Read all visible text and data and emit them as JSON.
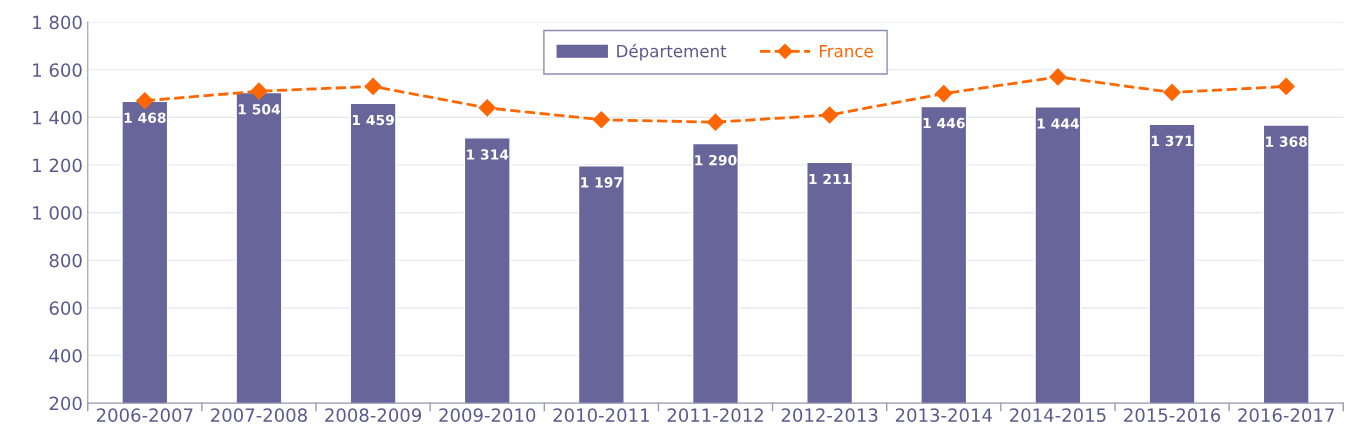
{
  "chart_data": {
    "type": "bar",
    "categories": [
      "2006-2007",
      "2007-2008",
      "2008-2009",
      "2009-2010",
      "2010-2011",
      "2011-2012",
      "2012-2013",
      "2013-2014",
      "2014-2015",
      "2015-2016",
      "2016-2017"
    ],
    "series": [
      {
        "name": "Département",
        "color": "#67659a",
        "values": [
          1468,
          1504,
          1459,
          1314,
          1197,
          1290,
          1211,
          1446,
          1444,
          1371,
          1368
        ],
        "value_labels": [
          "1 468",
          "1 504",
          "1 459",
          "1 314",
          "1 197",
          "1 290",
          "1 211",
          "1 446",
          "1 444",
          "1 371",
          "1 368"
        ]
      },
      {
        "name": "France",
        "type": "line",
        "color": "#ff6600",
        "line_style": "dashed",
        "marker": "diamond",
        "values": [
          1470,
          1510,
          1530,
          1440,
          1390,
          1380,
          1410,
          1500,
          1570,
          1505,
          1530
        ]
      }
    ],
    "ylim": [
      200,
      1800
    ],
    "yticks": [
      {
        "value": 200,
        "label": "200"
      },
      {
        "value": 400,
        "label": "400"
      },
      {
        "value": 600,
        "label": "600"
      },
      {
        "value": 800,
        "label": "800"
      },
      {
        "value": 1000,
        "label": "1 000"
      },
      {
        "value": 1200,
        "label": "1 200"
      },
      {
        "value": 1400,
        "label": "1 400"
      },
      {
        "value": 1600,
        "label": "1 600"
      },
      {
        "value": 1800,
        "label": "1 800"
      }
    ],
    "grid": "y",
    "legend": "top"
  }
}
